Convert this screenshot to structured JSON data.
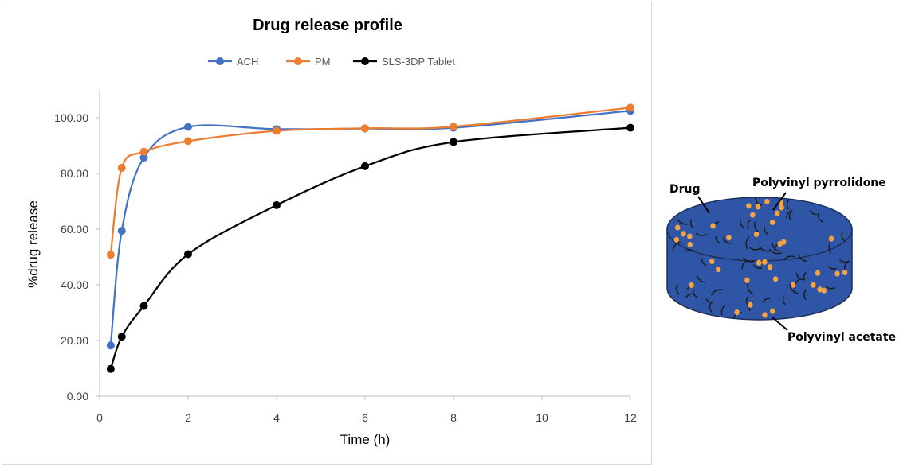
{
  "chart_data": {
    "type": "line",
    "title": "Drug release profile",
    "xlabel": "Time (h)",
    "ylabel": "%drug release",
    "xlim": [
      0,
      12
    ],
    "ylim": [
      0,
      100
    ],
    "x_ticks": [
      0,
      2,
      4,
      6,
      8,
      10,
      12
    ],
    "y_ticks": [
      "0.00",
      "20.00",
      "40.00",
      "60.00",
      "80.00",
      "100.00"
    ],
    "y_tick_values": [
      0,
      20,
      40,
      60,
      80,
      100
    ],
    "grid": false,
    "legend_position": "top",
    "x": [
      0.25,
      0.5,
      1,
      2,
      4,
      6,
      8,
      12
    ],
    "series": [
      {
        "name": "ACH",
        "color": "#4472c4",
        "values": [
          18.2,
          59.4,
          85.7,
          96.7,
          95.9,
          96.1,
          96.4,
          102.5
        ]
      },
      {
        "name": "PM",
        "color": "#ed7d31",
        "values": [
          50.8,
          82.0,
          87.8,
          91.6,
          95.3,
          96.2,
          96.8,
          103.6
        ]
      },
      {
        "name": "SLS-3DP Tablet",
        "color": "#000000",
        "values": [
          9.8,
          21.4,
          32.4,
          51.0,
          68.6,
          82.6,
          91.3,
          96.4
        ]
      }
    ]
  },
  "tablet": {
    "label_drug": "Drug",
    "label_pvp": "Polyvinyl pyrrolidone",
    "label_pva": "Polyvinyl acetate",
    "body_color": "#2f56a6",
    "particle_color": "#f4a340",
    "strand_color": "#1a1a1a"
  }
}
